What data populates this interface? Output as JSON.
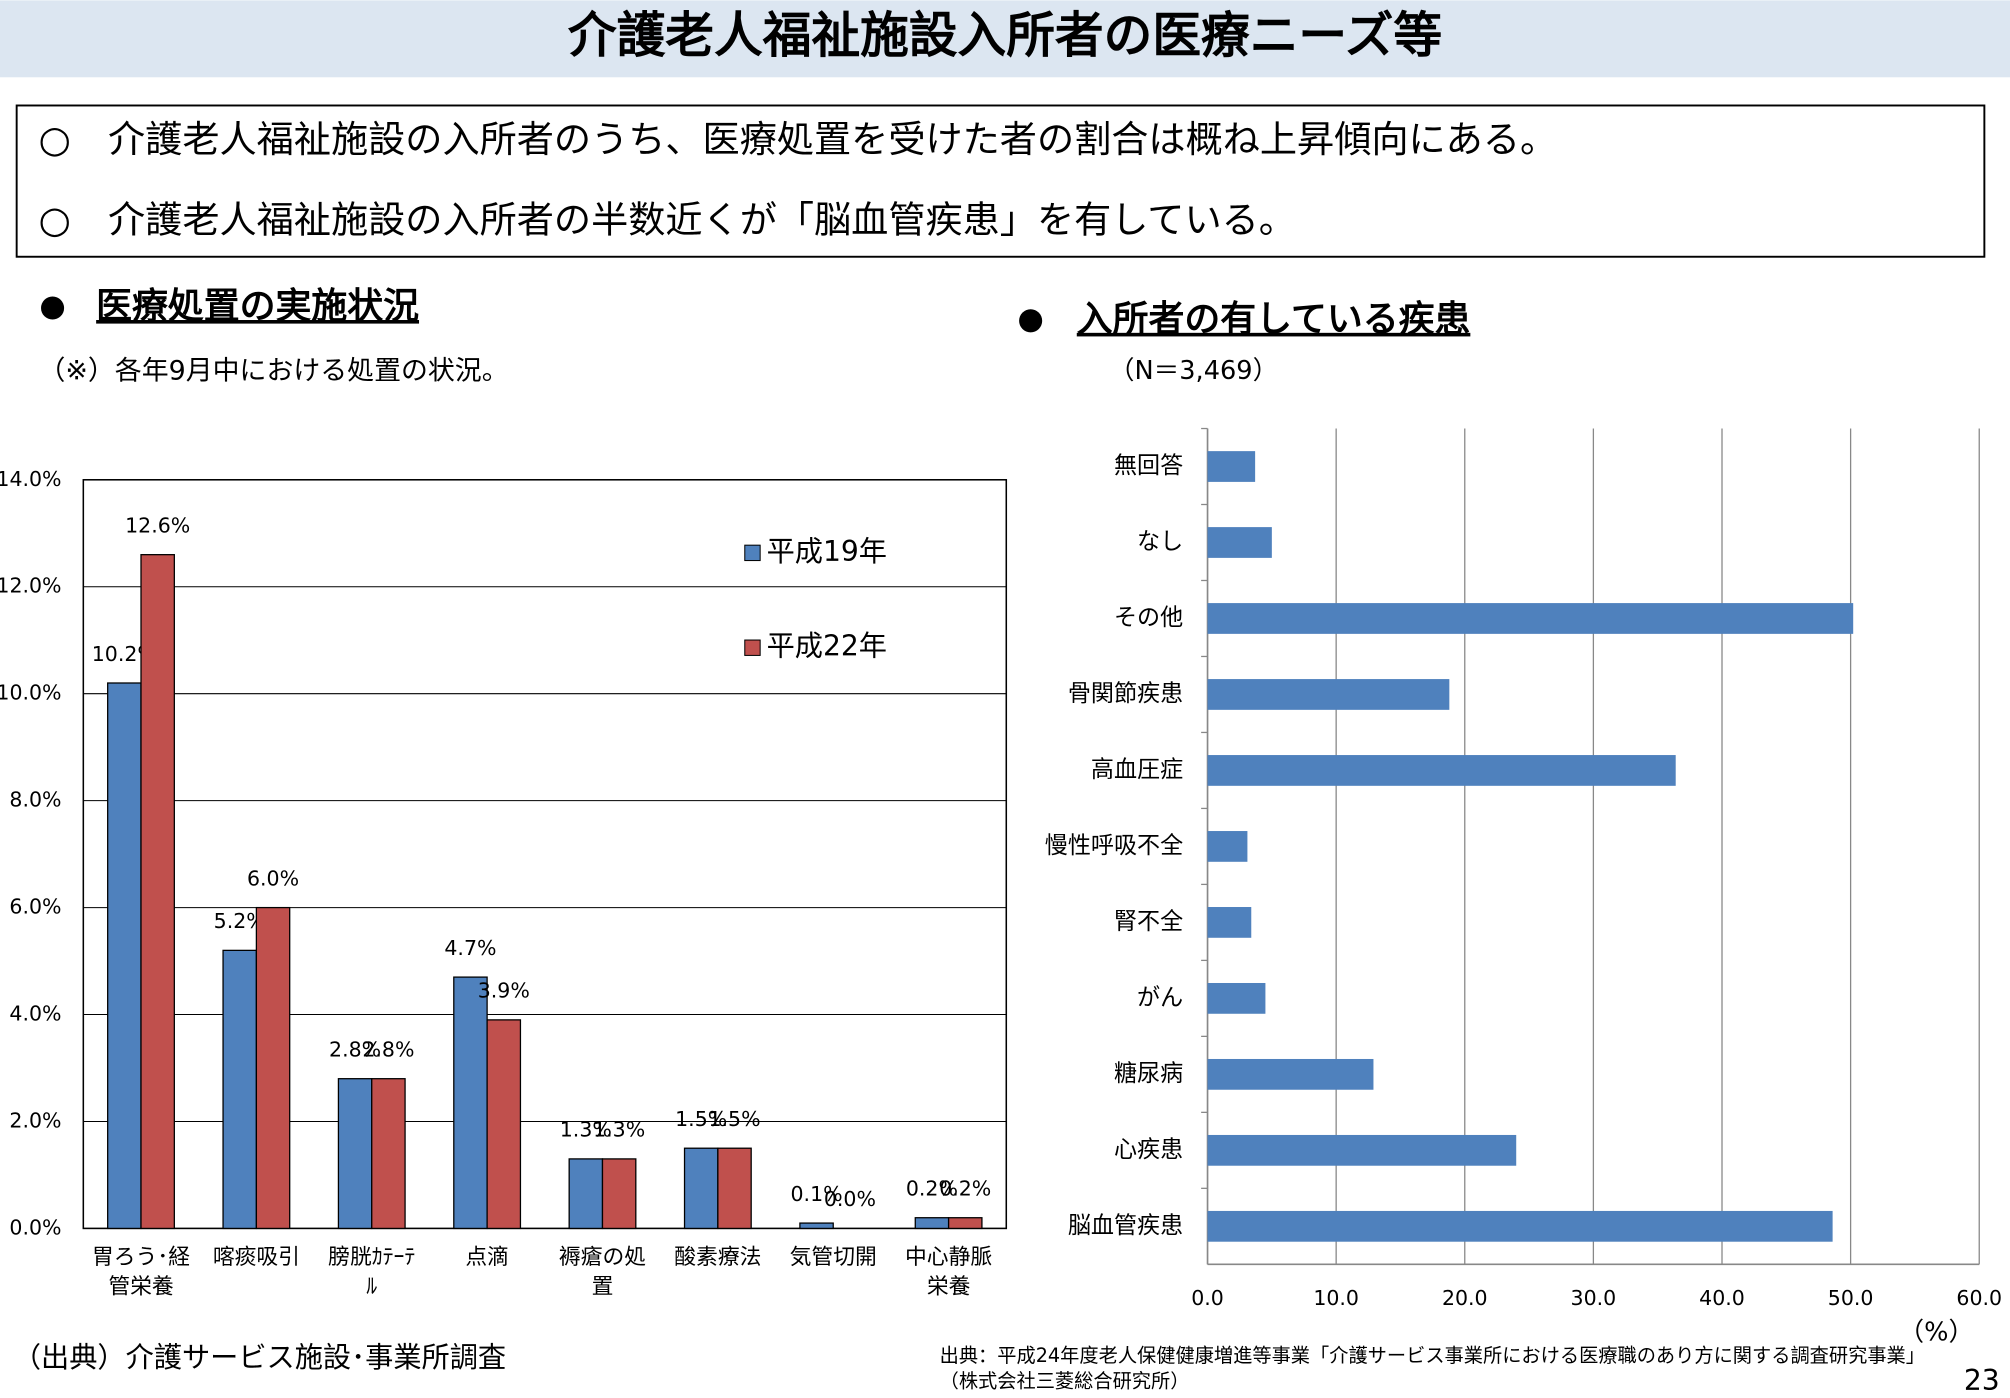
{
  "title": "介護老人福祉施設入所者の医療ニーズ等",
  "bullets": [
    "○　介護老人福祉施設の入所者のうち、医療処置を受けた者の割合は概ね上昇傾向にある。",
    "○　介護老人福祉施設の入所者の半数近くが「脳血管疾患」を有している。"
  ],
  "source_left": "（出典）介護サービス施設･事業所調査",
  "source_right": [
    "出典：平成24年度老人保健健康増進等事業「介護サービス事業所における医療職のあり方に関する調査研究事業」",
    "（株式会社三菱総合研究所）"
  ],
  "page_number": "23",
  "chart_data": [
    {
      "type": "bar",
      "title": "医療処置の実施状況",
      "subtitle": "（※）各年9月中における処置の状況。",
      "categories": [
        "胃ろう･経\n管栄養",
        "喀痰吸引",
        "膀胱ｶﾃｰﾃ\nﾙ",
        "点滴",
        "褥瘡の処\n置",
        "酸素療法",
        "気管切開",
        "中心静脈\n栄養"
      ],
      "series": [
        {
          "name": "平成19年",
          "color": "#4f81bd",
          "values": [
            10.2,
            5.2,
            2.8,
            4.7,
            1.3,
            1.5,
            0.1,
            0.2
          ],
          "value_labels": [
            "10.2%",
            "5.2%",
            "2.8%",
            "4.7%",
            "1.3%",
            "1.5%",
            "0.1%",
            "0.2%"
          ]
        },
        {
          "name": "平成22年",
          "color": "#c0504d",
          "values": [
            12.6,
            6.0,
            2.8,
            3.9,
            1.3,
            1.5,
            0.0,
            0.2
          ],
          "value_labels": [
            "12.6%",
            "6.0%",
            "2.8%",
            "3.9%",
            "1.3%",
            "1.5%",
            "0.0%",
            "0.2%"
          ]
        }
      ],
      "ylim": [
        0,
        14
      ],
      "yticks": [
        {
          "value": 0,
          "label": "0.0%"
        },
        {
          "value": 2,
          "label": "2.0%"
        },
        {
          "value": 4,
          "label": "4.0%"
        },
        {
          "value": 6,
          "label": "6.0%"
        },
        {
          "value": 8,
          "label": "8.0%"
        },
        {
          "value": 10,
          "label": "10.0%"
        },
        {
          "value": 12,
          "label": "12.0%"
        },
        {
          "value": 14,
          "label": "14.0%"
        }
      ],
      "grid": true,
      "legend": "upper right"
    },
    {
      "type": "hbar",
      "title": "入所者の有している疾患",
      "subtitle": "（N＝3,469）",
      "xlabel": "（%）",
      "categories": [
        "無回答",
        "なし",
        "その他",
        "骨関節疾患",
        "高血圧症",
        "慢性呼吸不全",
        "腎不全",
        "がん",
        "糖尿病",
        "心疾患",
        "脳血管疾患"
      ],
      "values": [
        3.7,
        5.0,
        50.2,
        18.8,
        36.4,
        3.1,
        3.4,
        4.5,
        12.9,
        24.0,
        48.6
      ],
      "color": "#4f81bd",
      "xlim": [
        0,
        60
      ],
      "xticks": [
        {
          "value": 0,
          "label": "0.0"
        },
        {
          "value": 10,
          "label": "10.0"
        },
        {
          "value": 20,
          "label": "20.0"
        },
        {
          "value": 30,
          "label": "30.0"
        },
        {
          "value": 40,
          "label": "40.0"
        },
        {
          "value": 50,
          "label": "50.0"
        },
        {
          "value": 60,
          "label": "60.0"
        }
      ],
      "grid": true
    }
  ]
}
